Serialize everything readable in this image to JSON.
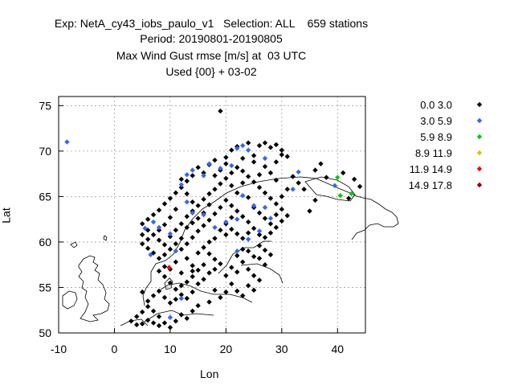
{
  "chart_data": {
    "type": "scatter",
    "title_lines": [
      "Exp: NetA_cy43_iobs_paulo_v1   Selection: ALL    659 stations",
      "Period: 20190801-20190805",
      "Max Wind Gust rmse [m/s] at  03 UTC",
      "Used {00} + 03-02"
    ],
    "xlabel": "Lon",
    "ylabel": "Lat",
    "xlim": [
      -10,
      45
    ],
    "ylim": [
      50,
      76
    ],
    "xticks": [
      -10,
      0,
      10,
      20,
      30,
      40
    ],
    "yticks": [
      50,
      55,
      60,
      65,
      70,
      75
    ],
    "grid": true,
    "legend_position": "right",
    "series": [
      {
        "name": "0.0 3.0",
        "color": "#000000",
        "points": [
          [
            19,
            74.4
          ],
          [
            21,
            70.1
          ],
          [
            22,
            70.5
          ],
          [
            24,
            70.9
          ],
          [
            26,
            70.6
          ],
          [
            27,
            70.9
          ],
          [
            28,
            70.4
          ],
          [
            29,
            70.7
          ],
          [
            30,
            70.1
          ],
          [
            31,
            69.4
          ],
          [
            25,
            69.5
          ],
          [
            23,
            69.2
          ],
          [
            20,
            69.3
          ],
          [
            18,
            69.0
          ],
          [
            17,
            68.5
          ],
          [
            15,
            68.2
          ],
          [
            16,
            67.6
          ],
          [
            14,
            67.3
          ],
          [
            13,
            66.7
          ],
          [
            12,
            66.0
          ],
          [
            11,
            65.4
          ],
          [
            10,
            64.8
          ],
          [
            9,
            64.2
          ],
          [
            8,
            63.5
          ],
          [
            7,
            63.0
          ],
          [
            6,
            62.5
          ],
          [
            5,
            62.0
          ],
          [
            6,
            61.3
          ],
          [
            5,
            60.8
          ],
          [
            6,
            60.3
          ],
          [
            5,
            59.8
          ],
          [
            6,
            59.3
          ],
          [
            7,
            58.8
          ],
          [
            8,
            58.2
          ],
          [
            9,
            58.6
          ],
          [
            10,
            59.2
          ],
          [
            11,
            59.8
          ],
          [
            10,
            60.6
          ],
          [
            11,
            61.3
          ],
          [
            12,
            62.0
          ],
          [
            13,
            62.8
          ],
          [
            14,
            63.4
          ],
          [
            15,
            64.0
          ],
          [
            16,
            64.7
          ],
          [
            17,
            65.3
          ],
          [
            18,
            65.8
          ],
          [
            19,
            66.4
          ],
          [
            20,
            67.0
          ],
          [
            21,
            67.6
          ],
          [
            22,
            68.2
          ],
          [
            23,
            67.8
          ],
          [
            24,
            67.2
          ],
          [
            25,
            66.6
          ],
          [
            26,
            66.0
          ],
          [
            27,
            65.4
          ],
          [
            28,
            64.8
          ],
          [
            29,
            64.2
          ],
          [
            30,
            63.6
          ],
          [
            31,
            62.9
          ],
          [
            30,
            62.3
          ],
          [
            29,
            61.6
          ],
          [
            28,
            61.0
          ],
          [
            27,
            60.5
          ],
          [
            26,
            60.8
          ],
          [
            25,
            61.5
          ],
          [
            24,
            62.2
          ],
          [
            23,
            62.8
          ],
          [
            22,
            63.4
          ],
          [
            21,
            64.0
          ],
          [
            20,
            64.6
          ],
          [
            19,
            63.8
          ],
          [
            18,
            63.1
          ],
          [
            17,
            62.4
          ],
          [
            16,
            61.8
          ],
          [
            15,
            61.2
          ],
          [
            14,
            60.5
          ],
          [
            13,
            59.8
          ],
          [
            12,
            59.2
          ],
          [
            16,
            59.4
          ],
          [
            17,
            58.7
          ],
          [
            18,
            58.1
          ],
          [
            16,
            57.5
          ],
          [
            15,
            56.9
          ],
          [
            14,
            56.2
          ],
          [
            13,
            55.6
          ],
          [
            12,
            55.2
          ],
          [
            11,
            54.8
          ],
          [
            10,
            55.5
          ],
          [
            9,
            56.2
          ],
          [
            8,
            56.8
          ],
          [
            9,
            57.3
          ],
          [
            10,
            57.0
          ],
          [
            22,
            58.5
          ],
          [
            23,
            59.2
          ],
          [
            24,
            59.0
          ],
          [
            25,
            58.4
          ],
          [
            26,
            58.2
          ],
          [
            27,
            57.5
          ],
          [
            24,
            57.0
          ],
          [
            25,
            56.3
          ],
          [
            26,
            55.8
          ],
          [
            21,
            55.4
          ],
          [
            22,
            54.6
          ],
          [
            23,
            54.1
          ],
          [
            20,
            54.5
          ],
          [
            18,
            54.7
          ],
          [
            19,
            53.9
          ],
          [
            17,
            53.4
          ],
          [
            15,
            53.0
          ],
          [
            14,
            52.4
          ],
          [
            12,
            52.0
          ],
          [
            13,
            51.6
          ],
          [
            11,
            51.3
          ],
          [
            9,
            51.1
          ],
          [
            8,
            51.8
          ],
          [
            7,
            52.4
          ],
          [
            6,
            52.9
          ],
          [
            5,
            52.3
          ],
          [
            4,
            51.8
          ],
          [
            3,
            51.3
          ],
          [
            4,
            50.9
          ],
          [
            5,
            51.0
          ],
          [
            6,
            51.4
          ],
          [
            7,
            51.1
          ],
          [
            8,
            50.8
          ],
          [
            10,
            50.6
          ],
          [
            6,
            53.5
          ],
          [
            7,
            54.1
          ],
          [
            8,
            54.6
          ],
          [
            9,
            53.9
          ],
          [
            10,
            53.3
          ],
          [
            11,
            53.7
          ],
          [
            12,
            54.2
          ],
          [
            13,
            53.8
          ],
          [
            14,
            54.5
          ],
          [
            12,
            56.6
          ],
          [
            11,
            57.8
          ],
          [
            13,
            58.2
          ],
          [
            14,
            57.4
          ],
          [
            15,
            58.8
          ],
          [
            5,
            54.5
          ],
          [
            36,
            67.9
          ],
          [
            37,
            68.6
          ],
          [
            38,
            67.1
          ],
          [
            41,
            67.6
          ],
          [
            43,
            66.9
          ],
          [
            44,
            66.1
          ],
          [
            42,
            64.8
          ],
          [
            36,
            64.6
          ],
          [
            34,
            65.8
          ],
          [
            33,
            66.5
          ],
          [
            32,
            67.2
          ],
          [
            35,
            63.4
          ],
          [
            30,
            69.6
          ],
          [
            29,
            68.8
          ],
          [
            27,
            68.3
          ],
          [
            26,
            67.4
          ],
          [
            25,
            68.8
          ],
          [
            23,
            66.5
          ],
          [
            22,
            65.4
          ],
          [
            21,
            62.7
          ],
          [
            20,
            62.0
          ],
          [
            19,
            61.3
          ],
          [
            18,
            60.4
          ],
          [
            17,
            60.0
          ],
          [
            15,
            62.6
          ],
          [
            14,
            64.4
          ],
          [
            13,
            65.3
          ],
          [
            12,
            66.9
          ],
          [
            11,
            63.6
          ],
          [
            10,
            62.7
          ],
          [
            9,
            61.9
          ],
          [
            8,
            61.3
          ],
          [
            7,
            60.8
          ],
          [
            8,
            60.2
          ],
          [
            9,
            59.7
          ],
          [
            12,
            60.4
          ],
          [
            13,
            61.6
          ],
          [
            14,
            62.1
          ],
          [
            16,
            63.2
          ],
          [
            17,
            64.1
          ],
          [
            18,
            67.3
          ],
          [
            19,
            67.9
          ],
          [
            20,
            68.6
          ],
          [
            21,
            66.2
          ],
          [
            24,
            64.9
          ],
          [
            25,
            63.8
          ],
          [
            26,
            63.2
          ],
          [
            27,
            62.6
          ],
          [
            28,
            62.0
          ],
          [
            29,
            63.0
          ],
          [
            30,
            65.0
          ],
          [
            31,
            65.8
          ],
          [
            29,
            66.8
          ],
          [
            28,
            67.6
          ],
          [
            24,
            61.0
          ],
          [
            23,
            60.4
          ],
          [
            22,
            60.9
          ],
          [
            21,
            61.4
          ],
          [
            20,
            60.8
          ],
          [
            26,
            59.6
          ],
          [
            27,
            59.1
          ],
          [
            28,
            58.6
          ],
          [
            24,
            55.2
          ],
          [
            25,
            54.7
          ],
          [
            22,
            56.7
          ],
          [
            23,
            57.8
          ],
          [
            21,
            57.2
          ],
          [
            20,
            56.3
          ],
          [
            19,
            57.6
          ],
          [
            18,
            57.0
          ],
          [
            17,
            56.6
          ],
          [
            16,
            55.9
          ],
          [
            15,
            55.4
          ],
          [
            14,
            56.8
          ]
        ]
      },
      {
        "name": "3.0 5.9",
        "color": "#3366ff",
        "points": [
          [
            -8.5,
            71.0
          ],
          [
            5.5,
            61.5
          ],
          [
            6.5,
            58.6
          ],
          [
            22,
            70.3
          ],
          [
            23,
            70.6
          ],
          [
            24,
            70.1
          ],
          [
            27,
            69.2
          ],
          [
            33,
            67.7
          ],
          [
            39.5,
            66.2
          ],
          [
            32,
            65.8
          ],
          [
            23,
            65.1
          ],
          [
            22,
            62.5
          ],
          [
            20,
            62.2
          ],
          [
            18,
            61.6
          ],
          [
            16,
            63.0
          ],
          [
            14,
            63.2
          ],
          [
            13,
            64.4
          ],
          [
            12,
            66.3
          ],
          [
            13,
            67.4
          ],
          [
            14,
            67.9
          ],
          [
            16,
            67.3
          ],
          [
            17,
            68.6
          ],
          [
            19,
            68.1
          ],
          [
            21,
            68.4
          ],
          [
            25,
            64.0
          ],
          [
            27,
            63.8
          ],
          [
            28,
            62.6
          ],
          [
            26,
            61.2
          ],
          [
            24,
            60.3
          ],
          [
            8,
            61.6
          ],
          [
            7,
            62.2
          ],
          [
            10,
            60.9
          ],
          [
            11,
            59.0
          ],
          [
            22,
            59.0
          ],
          [
            10,
            51.7
          ],
          [
            12,
            53.8
          ]
        ]
      },
      {
        "name": "5.9 8.9",
        "color": "#00cc00",
        "points": [
          [
            40,
            67.1
          ],
          [
            42.5,
            65.3
          ],
          [
            40.5,
            65.1
          ]
        ]
      },
      {
        "name": "8.9 11.9",
        "color": "#cccc00",
        "points": []
      },
      {
        "name": "11.9 14.9",
        "color": "#ff0000",
        "points": [
          [
            9.8,
            57.2
          ]
        ]
      },
      {
        "name": "14.9 17.8",
        "color": "#990000",
        "points": []
      }
    ]
  }
}
